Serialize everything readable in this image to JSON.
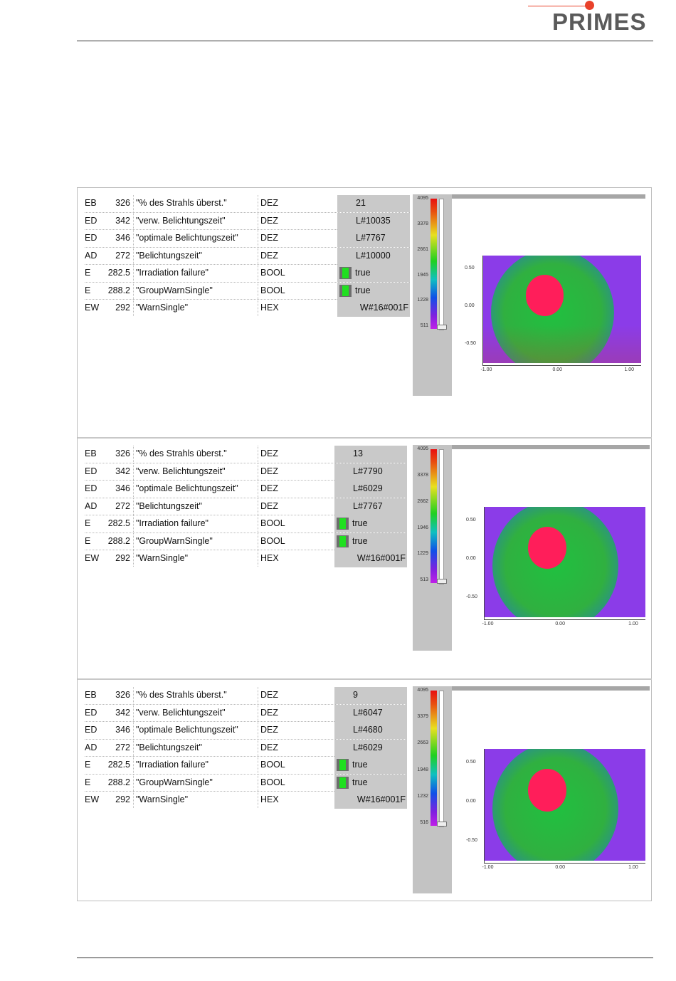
{
  "header": {
    "logo_text": "PRIMES"
  },
  "panels": [
    {
      "rows": [
        {
          "kind": "EB",
          "addr": "326",
          "name": "\"% des Strahls überst.\"",
          "fmt": "DEZ",
          "value": "21",
          "bool": false
        },
        {
          "kind": "ED",
          "addr": "342",
          "name": "\"verw. Belichtungszeit\"",
          "fmt": "DEZ",
          "value": "L#10035",
          "bool": false
        },
        {
          "kind": "ED",
          "addr": "346",
          "name": "\"optimale Belichtungszeit\"",
          "fmt": "DEZ",
          "value": "L#7767",
          "bool": false
        },
        {
          "kind": "AD",
          "addr": "272",
          "name": "\"Belichtungszeit\"",
          "fmt": "DEZ",
          "value": "L#10000",
          "bool": false
        },
        {
          "kind": "E",
          "addr": "282.5",
          "name": "\"Irradiation failure\"",
          "fmt": "BOOL",
          "value": "true",
          "bool": true
        },
        {
          "kind": "E",
          "addr": "288.2",
          "name": "\"GroupWarnSingle\"",
          "fmt": "BOOL",
          "value": "true",
          "bool": true
        },
        {
          "kind": "EW",
          "addr": "292",
          "name": "\"WarnSingle\"",
          "fmt": "HEX",
          "value": "W#16#001F",
          "bool": false
        }
      ],
      "colorbar_ticks": [
        "4095",
        "3378",
        "2661",
        "1945",
        "1228",
        "511"
      ],
      "axis_y_ticks": [
        "0.50",
        "0.00",
        "-0.50"
      ],
      "axis_x_ticks": [
        "-1.00",
        "0.00",
        "1.00"
      ]
    },
    {
      "rows": [
        {
          "kind": "EB",
          "addr": "326",
          "name": "\"% des Strahls überst.\"",
          "fmt": "DEZ",
          "value": "13",
          "bool": false
        },
        {
          "kind": "ED",
          "addr": "342",
          "name": "\"verw. Belichtungszeit\"",
          "fmt": "DEZ",
          "value": "L#7790",
          "bool": false
        },
        {
          "kind": "ED",
          "addr": "346",
          "name": "\"optimale Belichtungszeit\"",
          "fmt": "DEZ",
          "value": "L#6029",
          "bool": false
        },
        {
          "kind": "AD",
          "addr": "272",
          "name": "\"Belichtungszeit\"",
          "fmt": "DEZ",
          "value": "L#7767",
          "bool": false
        },
        {
          "kind": "E",
          "addr": "282.5",
          "name": "\"Irradiation failure\"",
          "fmt": "BOOL",
          "value": "true",
          "bool": true
        },
        {
          "kind": "E",
          "addr": "288.2",
          "name": "\"GroupWarnSingle\"",
          "fmt": "BOOL",
          "value": "true",
          "bool": true
        },
        {
          "kind": "EW",
          "addr": "292",
          "name": "\"WarnSingle\"",
          "fmt": "HEX",
          "value": "W#16#001F",
          "bool": false
        }
      ],
      "colorbar_ticks": [
        "4095",
        "3378",
        "2662",
        "1946",
        "1229",
        "513"
      ],
      "axis_y_ticks": [
        "0.50",
        "0.00",
        "-0.50"
      ],
      "axis_x_ticks": [
        "-1.00",
        "0.00",
        "1.00"
      ]
    },
    {
      "rows": [
        {
          "kind": "EB",
          "addr": "326",
          "name": "\"% des Strahls überst.\"",
          "fmt": "DEZ",
          "value": "9",
          "bool": false
        },
        {
          "kind": "ED",
          "addr": "342",
          "name": "\"verw. Belichtungszeit\"",
          "fmt": "DEZ",
          "value": "L#6047",
          "bool": false
        },
        {
          "kind": "ED",
          "addr": "346",
          "name": "\"optimale Belichtungszeit\"",
          "fmt": "DEZ",
          "value": "L#4680",
          "bool": false
        },
        {
          "kind": "AD",
          "addr": "272",
          "name": "\"Belichtungszeit\"",
          "fmt": "DEZ",
          "value": "L#6029",
          "bool": false
        },
        {
          "kind": "E",
          "addr": "282.5",
          "name": "\"Irradiation failure\"",
          "fmt": "BOOL",
          "value": "true",
          "bool": true
        },
        {
          "kind": "E",
          "addr": "288.2",
          "name": "\"GroupWarnSingle\"",
          "fmt": "BOOL",
          "value": "true",
          "bool": true
        },
        {
          "kind": "EW",
          "addr": "292",
          "name": "\"WarnSingle\"",
          "fmt": "HEX",
          "value": "W#16#001F",
          "bool": false
        }
      ],
      "colorbar_ticks": [
        "4095",
        "3379",
        "2663",
        "1948",
        "1232",
        "516"
      ],
      "axis_y_ticks": [
        "0.50",
        "0.00",
        "-0.50"
      ],
      "axis_x_ticks": [
        "-1.00",
        "0.00",
        "1.00"
      ]
    }
  ],
  "colors": {
    "brand": "#e9412a",
    "logo_text": "#5a5a5a",
    "bool_on": "#20e020",
    "value_bg": "#c9c9c9"
  }
}
